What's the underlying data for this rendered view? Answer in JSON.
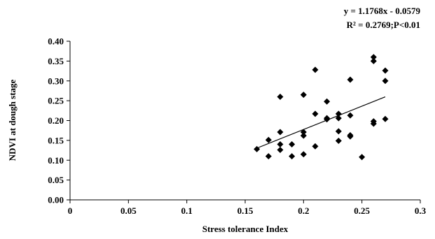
{
  "chart_data": {
    "type": "scatter",
    "xlabel": "Stress tolerance Index",
    "ylabel": "NDVI at dough stage",
    "xlim": [
      0,
      0.3
    ],
    "ylim": [
      0,
      0.4
    ],
    "x_ticks": [
      0,
      0.05,
      0.1,
      0.15,
      0.2,
      0.25,
      0.3
    ],
    "x_tick_labels": [
      "0",
      "0.05",
      "0.1",
      "0.15",
      "0.2",
      "0.25",
      "0.3"
    ],
    "y_ticks": [
      0,
      0.05,
      0.1,
      0.15,
      0.2,
      0.25,
      0.3,
      0.35,
      0.4
    ],
    "y_tick_labels": [
      "0.00",
      "0.05",
      "0.10",
      "0.15",
      "0.20",
      "0.25",
      "0.30",
      "0.35",
      "0.40"
    ],
    "grid": false,
    "legend": "none",
    "marker": "diamond",
    "marker_color": "#000000",
    "points": [
      {
        "x": 0.16,
        "y": 0.128
      },
      {
        "x": 0.17,
        "y": 0.11
      },
      {
        "x": 0.17,
        "y": 0.151
      },
      {
        "x": 0.18,
        "y": 0.26
      },
      {
        "x": 0.18,
        "y": 0.171
      },
      {
        "x": 0.18,
        "y": 0.14
      },
      {
        "x": 0.18,
        "y": 0.126
      },
      {
        "x": 0.19,
        "y": 0.11
      },
      {
        "x": 0.19,
        "y": 0.14
      },
      {
        "x": 0.2,
        "y": 0.265
      },
      {
        "x": 0.2,
        "y": 0.171
      },
      {
        "x": 0.2,
        "y": 0.162
      },
      {
        "x": 0.2,
        "y": 0.115
      },
      {
        "x": 0.21,
        "y": 0.328
      },
      {
        "x": 0.21,
        "y": 0.217
      },
      {
        "x": 0.21,
        "y": 0.135
      },
      {
        "x": 0.22,
        "y": 0.248
      },
      {
        "x": 0.22,
        "y": 0.206
      },
      {
        "x": 0.22,
        "y": 0.203
      },
      {
        "x": 0.23,
        "y": 0.217
      },
      {
        "x": 0.23,
        "y": 0.206
      },
      {
        "x": 0.23,
        "y": 0.173
      },
      {
        "x": 0.23,
        "y": 0.149
      },
      {
        "x": 0.24,
        "y": 0.303
      },
      {
        "x": 0.24,
        "y": 0.213
      },
      {
        "x": 0.24,
        "y": 0.163
      },
      {
        "x": 0.24,
        "y": 0.16
      },
      {
        "x": 0.25,
        "y": 0.108
      },
      {
        "x": 0.26,
        "y": 0.36
      },
      {
        "x": 0.26,
        "y": 0.35
      },
      {
        "x": 0.26,
        "y": 0.198
      },
      {
        "x": 0.26,
        "y": 0.192
      },
      {
        "x": 0.27,
        "y": 0.326
      },
      {
        "x": 0.27,
        "y": 0.3
      },
      {
        "x": 0.27,
        "y": 0.204
      }
    ],
    "trendline": {
      "type": "linear",
      "slope": 1.1768,
      "intercept": -0.0579,
      "x_range": [
        0.16,
        0.27
      ]
    },
    "annotations": {
      "equation": "y = 1.1768x - 0.0579",
      "r_squared": "R² = 0.2769;P<0.01"
    }
  }
}
